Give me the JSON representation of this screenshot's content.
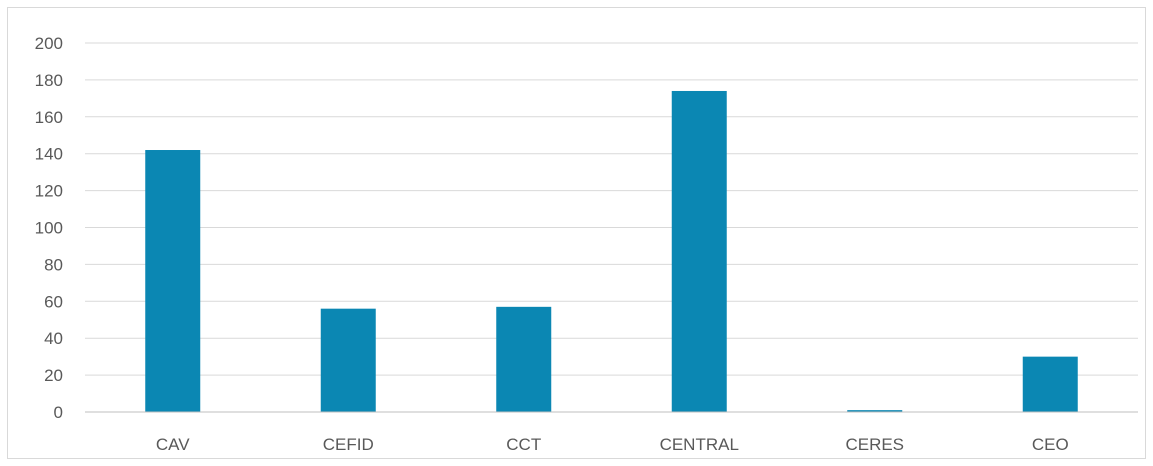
{
  "chart_data": {
    "type": "bar",
    "categories": [
      "CAV",
      "CEFID",
      "CCT",
      "CENTRAL",
      "CERES",
      "CEO"
    ],
    "values": [
      142,
      56,
      57,
      174,
      1,
      30
    ],
    "ylim": [
      0,
      200
    ],
    "yticks": [
      0,
      20,
      40,
      60,
      80,
      100,
      120,
      140,
      160,
      180,
      200
    ],
    "grid": true,
    "legend": "none",
    "colors": {
      "bar": "#0b87b3",
      "grid": "#d9d9d9",
      "axis": "#bfbfbf",
      "label": "#595959"
    }
  }
}
